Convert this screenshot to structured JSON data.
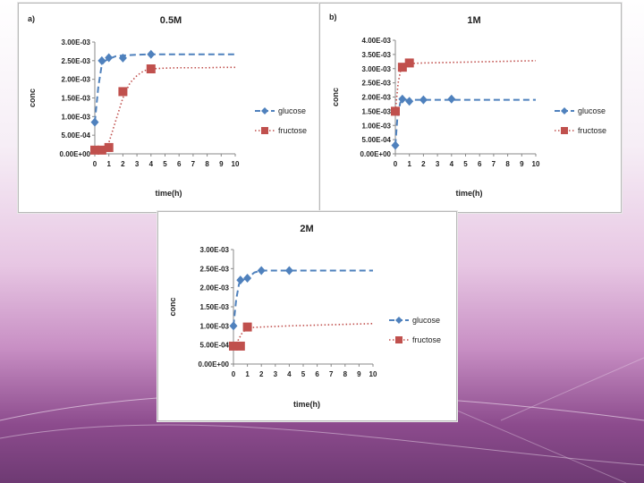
{
  "colors": {
    "glucose": "#4f81bd",
    "fructose": "#c0504d"
  },
  "chart_data": [
    {
      "type": "line",
      "panel_label": "a)",
      "title": "0.5M",
      "xlabel": "time(h)",
      "ylabel": "conc",
      "xlim": [
        0,
        10
      ],
      "ylim": [
        0,
        0.003
      ],
      "x_ticks": [
        "0",
        "1",
        "2",
        "3",
        "4",
        "5",
        "6",
        "7",
        "8",
        "9",
        "10"
      ],
      "y_ticks": [
        "0.00E+00",
        "5.00E-04",
        "1.00E-03",
        "1.50E-03",
        "2.00E-03",
        "2.50E-03",
        "3.00E-03"
      ],
      "legend": [
        "glucose",
        "fructose"
      ],
      "legend_position": "right",
      "series": [
        {
          "name": "glucose",
          "marker": "diamond",
          "x": [
            0,
            0.5,
            1,
            2,
            4
          ],
          "y": [
            0.00085,
            0.0025,
            0.00258,
            0.00257,
            0.00267
          ]
        },
        {
          "name": "fructose",
          "marker": "square",
          "x": [
            0,
            0.5,
            1,
            2,
            4
          ],
          "y": [
            0.0001,
            0.0001,
            0.00017,
            0.00167,
            0.00228
          ]
        }
      ],
      "trendlines": [
        {
          "name": "glucose",
          "style": "dashed",
          "x": [
            0,
            0.25,
            0.5,
            0.75,
            1,
            1.5,
            2,
            3,
            4,
            5,
            6,
            7,
            8,
            9,
            10
          ],
          "y": [
            0.00085,
            0.0018,
            0.0024,
            0.0025,
            0.00255,
            0.00262,
            0.00264,
            0.00266,
            0.00267,
            0.00267,
            0.00267,
            0.00267,
            0.00267,
            0.00267,
            0.00267
          ]
        },
        {
          "name": "fructose",
          "style": "dotted",
          "x": [
            0,
            0.5,
            1,
            1.5,
            2,
            2.5,
            3,
            3.5,
            4,
            5,
            6,
            7,
            8,
            9,
            10
          ],
          "y": [
            0.0001,
            0.0001,
            0.0003,
            0.0009,
            0.0015,
            0.0019,
            0.0021,
            0.00223,
            0.00228,
            0.0023,
            0.00231,
            0.00231,
            0.00231,
            0.00232,
            0.00232
          ]
        }
      ]
    },
    {
      "type": "line",
      "panel_label": "b)",
      "title": "1M",
      "xlabel": "time(h)",
      "ylabel": "conc",
      "xlim": [
        0,
        10
      ],
      "ylim": [
        0,
        0.004
      ],
      "x_ticks": [
        "0",
        "1",
        "2",
        "3",
        "4",
        "5",
        "6",
        "7",
        "8",
        "9",
        "10"
      ],
      "y_ticks": [
        "0.00E+00",
        "5.00E-04",
        "1.00E-03",
        "1.50E-03",
        "2.00E-03",
        "2.50E-03",
        "3.00E-03",
        "3.50E-03",
        "4.00E-03"
      ],
      "legend": [
        "glucose",
        "fructose"
      ],
      "legend_position": "right",
      "series": [
        {
          "name": "glucose",
          "marker": "diamond",
          "x": [
            0,
            0.5,
            1,
            2,
            4
          ],
          "y": [
            0.0003,
            0.00193,
            0.00185,
            0.0019,
            0.00193
          ]
        },
        {
          "name": "fructose",
          "marker": "square",
          "x": [
            0,
            0.5,
            1
          ],
          "y": [
            0.0015,
            0.00305,
            0.0032
          ]
        }
      ],
      "trendlines": [
        {
          "name": "glucose",
          "style": "dashed",
          "x": [
            0,
            0.15,
            0.35,
            0.5,
            1,
            2,
            4,
            6,
            8,
            10
          ],
          "y": [
            0.0003,
            0.0013,
            0.0018,
            0.0019,
            0.0019,
            0.0019,
            0.0019,
            0.0019,
            0.0019,
            0.0019
          ]
        },
        {
          "name": "fructose",
          "style": "dotted",
          "x": [
            0,
            0.2,
            0.4,
            0.6,
            1,
            2,
            4,
            6,
            8,
            10
          ],
          "y": [
            0.0015,
            0.0025,
            0.003,
            0.0031,
            0.00318,
            0.0032,
            0.00322,
            0.00324,
            0.00326,
            0.00328
          ]
        }
      ]
    },
    {
      "type": "line",
      "panel_label": "",
      "title": "2M",
      "xlabel": "time(h)",
      "ylabel": "conc",
      "xlim": [
        0,
        10
      ],
      "ylim": [
        0,
        0.003
      ],
      "x_ticks": [
        "0",
        "1",
        "2",
        "3",
        "4",
        "5",
        "6",
        "7",
        "8",
        "9",
        "10"
      ],
      "y_ticks": [
        "0.00E+00",
        "5.00E-04",
        "1.00E-03",
        "1.50E-03",
        "2.00E-03",
        "2.50E-03",
        "3.00E-03"
      ],
      "legend": [
        "glucose",
        "fructose"
      ],
      "legend_position": "right",
      "series": [
        {
          "name": "glucose",
          "marker": "diamond",
          "x": [
            0,
            0.5,
            1,
            2,
            4
          ],
          "y": [
            0.001,
            0.0022,
            0.00225,
            0.00245,
            0.00245
          ]
        },
        {
          "name": "fructose",
          "marker": "square",
          "x": [
            0,
            0.5,
            1
          ],
          "y": [
            0.00047,
            0.00047,
            0.00097
          ]
        }
      ],
      "trendlines": [
        {
          "name": "glucose",
          "style": "dashed",
          "x": [
            0,
            0.2,
            0.4,
            0.6,
            1,
            1.5,
            2,
            3,
            4,
            6,
            8,
            10
          ],
          "y": [
            0.001,
            0.0017,
            0.0021,
            0.0022,
            0.00225,
            0.0024,
            0.00245,
            0.00245,
            0.00245,
            0.00245,
            0.00245,
            0.00245
          ]
        },
        {
          "name": "fructose",
          "style": "dotted",
          "x": [
            0,
            0.3,
            0.6,
            1,
            2,
            4,
            6,
            8,
            10
          ],
          "y": [
            0.00047,
            0.0006,
            0.0008,
            0.00095,
            0.00097,
            0.001,
            0.00102,
            0.00104,
            0.00106
          ]
        }
      ]
    }
  ]
}
